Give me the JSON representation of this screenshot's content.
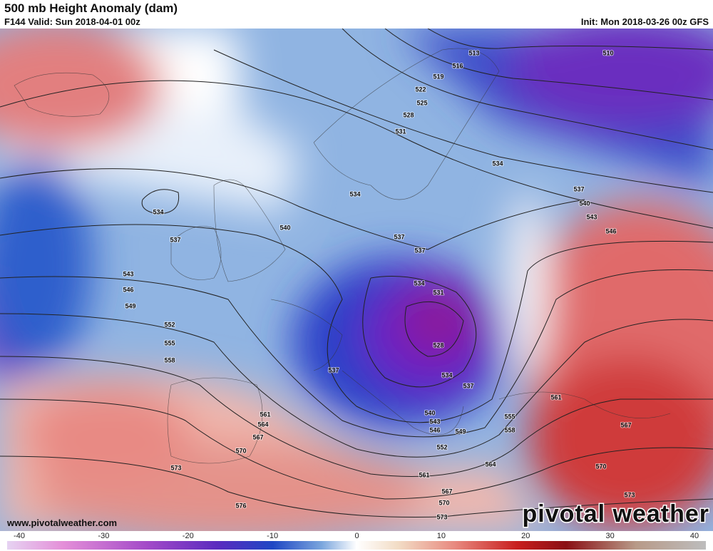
{
  "header": {
    "title": "500 mb Height Anomaly (dam)",
    "valid": "F144 Valid: Sun 2018-04-01 00z",
    "init": "Init: Mon 2018-03-26 00z GFS"
  },
  "contour_labels": [
    "513",
    "516",
    "519",
    "522",
    "525",
    "528",
    "531",
    "534",
    "534",
    "534",
    "537",
    "540",
    "543",
    "546",
    "537",
    "540",
    "537",
    "537",
    "543",
    "546",
    "549",
    "552",
    "555",
    "558",
    "534",
    "531",
    "528",
    "534",
    "537",
    "537",
    "540",
    "543",
    "546",
    "549",
    "552",
    "555",
    "558",
    "561",
    "564",
    "561",
    "567",
    "570",
    "573",
    "561",
    "564",
    "567",
    "570",
    "573",
    "576",
    "567",
    "570",
    "573",
    "510"
  ],
  "footer": {
    "website": "www.pivotalweather.com",
    "logo": "pivotal weather"
  },
  "colorbar": {
    "ticks": [
      -40,
      -30,
      -20,
      -10,
      0,
      10,
      20,
      30,
      40
    ]
  }
}
